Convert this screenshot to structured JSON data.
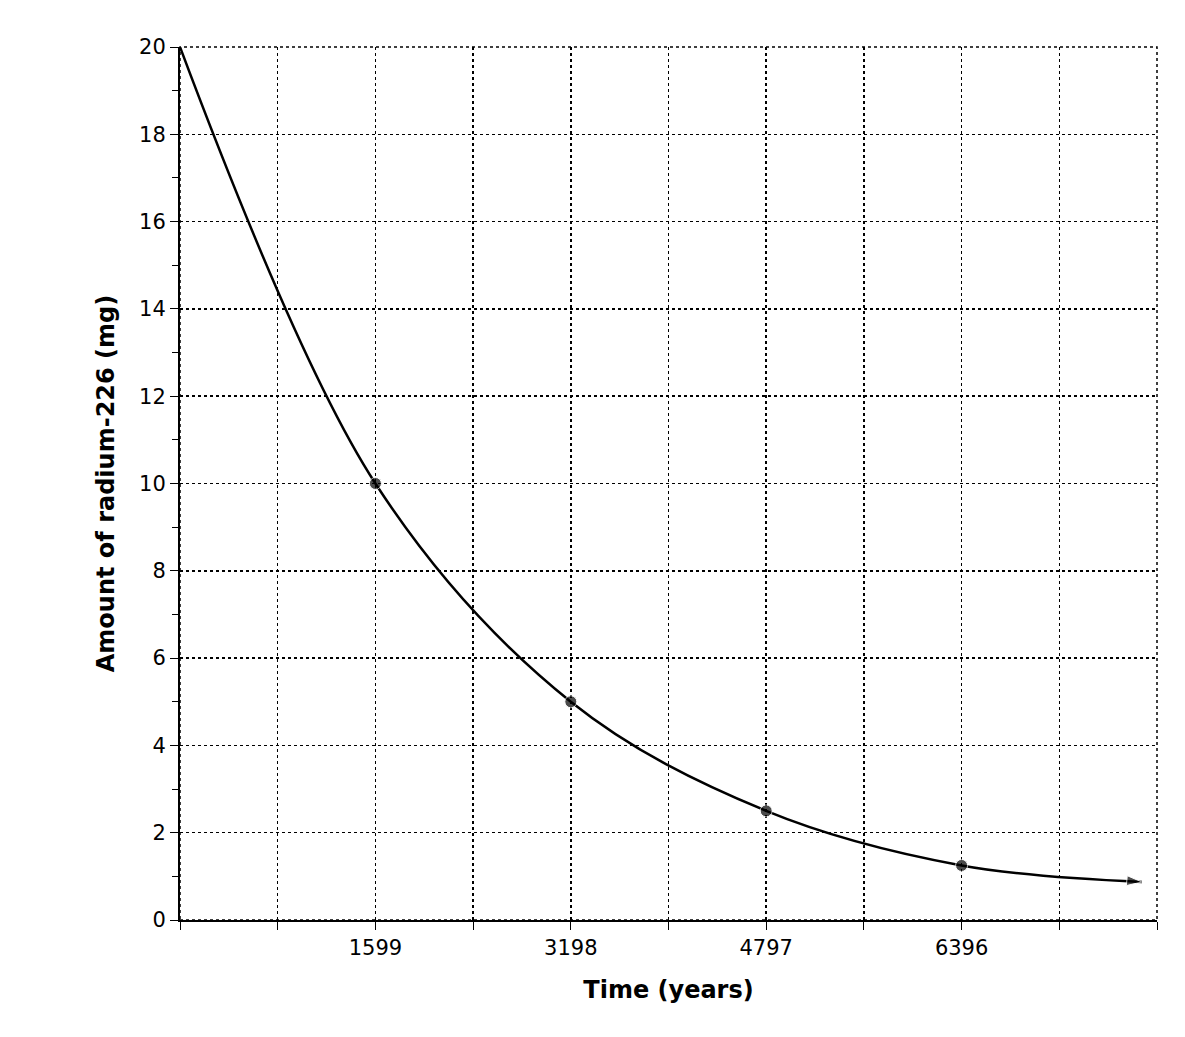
{
  "chart_data": {
    "type": "line",
    "x_title": "Time (years)",
    "y_title": "Amount of radium-226 (mg)",
    "x": [
      0,
      1599,
      3198,
      4797,
      6396,
      7872
    ],
    "values": [
      20,
      10,
      5,
      2.5,
      1.25,
      0.87
    ],
    "color": "#000000",
    "marker": "circle",
    "line_style": "solid",
    "xlim": [
      0,
      7995
    ],
    "xticks": [
      1599,
      3198,
      4797,
      6396
    ],
    "ylim": [
      0,
      20
    ],
    "yticks": [
      0,
      2,
      4,
      6,
      8,
      10,
      12,
      14,
      16,
      18,
      20
    ],
    "grid": true
  }
}
